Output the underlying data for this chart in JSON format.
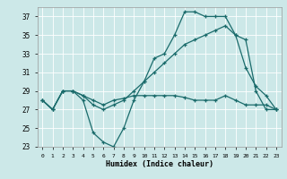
{
  "xlabel": "Humidex (Indice chaleur)",
  "background_color": "#cce8e8",
  "line_color": "#1a6b6b",
  "xlim": [
    -0.5,
    23.5
  ],
  "ylim": [
    23,
    38
  ],
  "yticks": [
    23,
    25,
    27,
    29,
    31,
    33,
    35,
    37
  ],
  "xticks": [
    0,
    1,
    2,
    3,
    4,
    5,
    6,
    7,
    8,
    9,
    10,
    11,
    12,
    13,
    14,
    15,
    16,
    17,
    18,
    19,
    20,
    21,
    22,
    23
  ],
  "line1_x": [
    0,
    1,
    2,
    3,
    4,
    5,
    6,
    7,
    8,
    9,
    10,
    11,
    12,
    13,
    14,
    15,
    16,
    17,
    18,
    19,
    20,
    21,
    22,
    23
  ],
  "line1_y": [
    28,
    27,
    29,
    29,
    28,
    24.5,
    23.5,
    23,
    25,
    28,
    30,
    32.5,
    33,
    35,
    37.5,
    37.5,
    37,
    37,
    37,
    35,
    34.5,
    29,
    27,
    27
  ],
  "line2_x": [
    0,
    1,
    2,
    3,
    4,
    5,
    6,
    7,
    8,
    9,
    10,
    11,
    12,
    13,
    14,
    15,
    16,
    17,
    18,
    19,
    20,
    21,
    22,
    23
  ],
  "line2_y": [
    28,
    27,
    29,
    29,
    28.5,
    27.5,
    27,
    27.5,
    28,
    29,
    30,
    31,
    32,
    33,
    34,
    34.5,
    35,
    35.5,
    36,
    35,
    31.5,
    29.5,
    28.5,
    27
  ],
  "line3_x": [
    0,
    1,
    2,
    3,
    4,
    5,
    6,
    7,
    8,
    9,
    10,
    11,
    12,
    13,
    14,
    15,
    16,
    17,
    18,
    19,
    20,
    21,
    22,
    23
  ],
  "line3_y": [
    28,
    27,
    29,
    29,
    28.5,
    28,
    27.5,
    28,
    28.2,
    28.5,
    28.5,
    28.5,
    28.5,
    28.5,
    28.3,
    28,
    28,
    28,
    28.5,
    28,
    27.5,
    27.5,
    27.5,
    27
  ]
}
